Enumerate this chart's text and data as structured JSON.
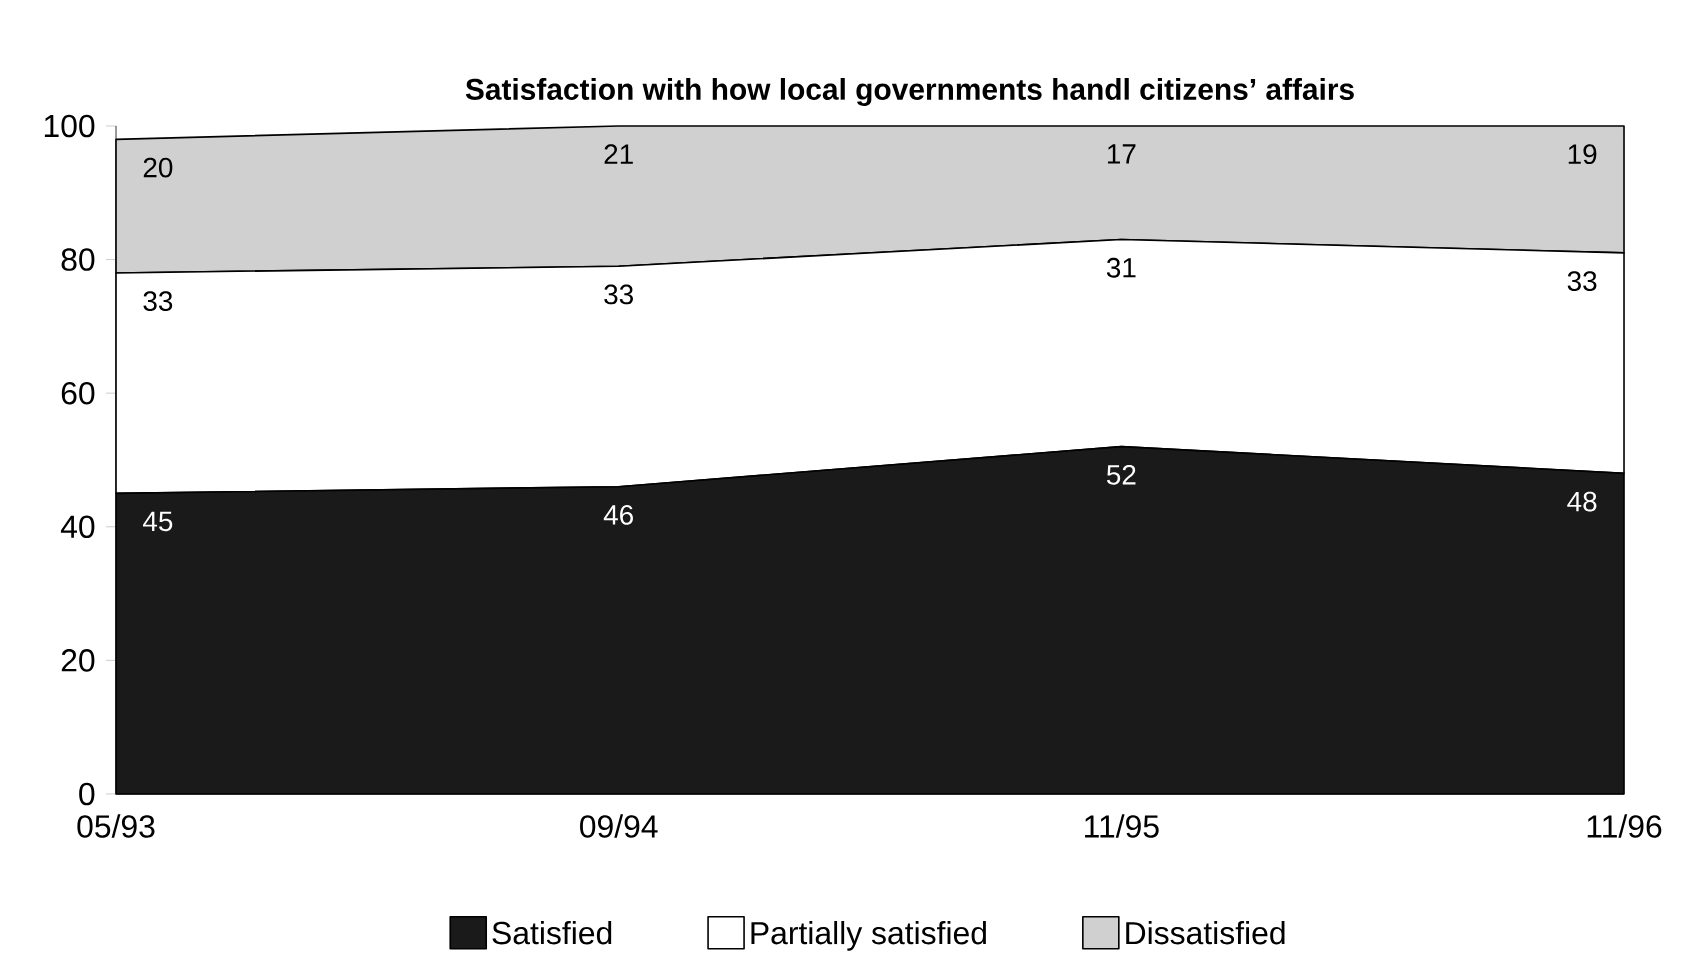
{
  "chart_data": {
    "type": "area",
    "stacked": true,
    "title": "Satisfaction with how local governments handl citizens’ affairs",
    "categories": [
      "05/93",
      "09/94",
      "11/95",
      "11/96"
    ],
    "series": [
      {
        "name": "Satisfied",
        "color": "#1a1a1a",
        "values": [
          45,
          46,
          52,
          48
        ]
      },
      {
        "name": "Partially satisfied",
        "color": "#ffffff",
        "values": [
          33,
          33,
          31,
          33
        ]
      },
      {
        "name": "Dissatisfied",
        "color": "#d0d0d0",
        "values": [
          20,
          21,
          17,
          19
        ]
      }
    ],
    "ylim": [
      0,
      100
    ],
    "yticks": [
      0,
      20,
      40,
      60,
      80,
      100
    ],
    "legend": "bottom",
    "data_labels": true,
    "grid": false
  }
}
